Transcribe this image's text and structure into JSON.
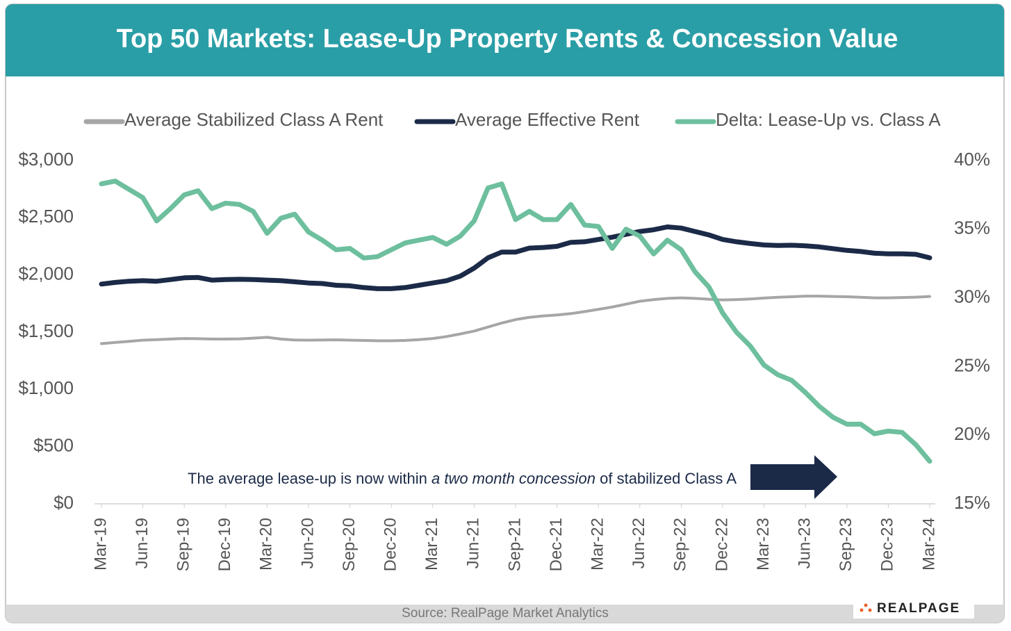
{
  "chart_data": {
    "type": "line",
    "title": "Top 50 Markets: Lease-Up Property Rents & Concession Value",
    "categories": [
      "Mar-19",
      null,
      null,
      "Jun-19",
      null,
      null,
      "Sep-19",
      null,
      null,
      "Dec-19",
      null,
      null,
      "Mar-20",
      null,
      null,
      "Jun-20",
      null,
      null,
      "Sep-20",
      null,
      null,
      "Dec-20",
      null,
      null,
      "Mar-21",
      null,
      null,
      "Jun-21",
      null,
      null,
      "Sep-21",
      null,
      null,
      "Dec-21",
      null,
      null,
      "Mar-22",
      null,
      null,
      "Jun-22",
      null,
      null,
      "Sep-22",
      null,
      null,
      "Dec-22",
      null,
      null,
      "Mar-23",
      null,
      null,
      "Jun-23",
      null,
      null,
      "Sep-23",
      null,
      null,
      "Dec-23",
      null,
      null,
      "Mar-24"
    ],
    "series": [
      {
        "name": "Average Stabilized Class A Rent",
        "color": "#a6a6a6",
        "values": [
          1400,
          1410,
          1420,
          1430,
          1435,
          1440,
          1445,
          1443,
          1440,
          1440,
          1442,
          1448,
          1455,
          1440,
          1432,
          1430,
          1432,
          1433,
          1430,
          1428,
          1425,
          1425,
          1428,
          1435,
          1445,
          1462,
          1485,
          1510,
          1545,
          1580,
          1610,
          1630,
          1642,
          1650,
          1662,
          1680,
          1700,
          1720,
          1745,
          1770,
          1785,
          1795,
          1800,
          1795,
          1788,
          1782,
          1785,
          1790,
          1798,
          1805,
          1810,
          1815,
          1815,
          1812,
          1810,
          1805,
          1800,
          1800,
          1803,
          1806,
          1812
        ]
      },
      {
        "name": "Average Effective Rent",
        "color": "#1b2a47",
        "values": [
          1920,
          1935,
          1945,
          1950,
          1945,
          1960,
          1975,
          1978,
          1955,
          1960,
          1962,
          1960,
          1955,
          1950,
          1940,
          1930,
          1925,
          1910,
          1905,
          1890,
          1880,
          1880,
          1890,
          1910,
          1930,
          1950,
          1990,
          2060,
          2150,
          2200,
          2200,
          2235,
          2240,
          2250,
          2285,
          2290,
          2310,
          2330,
          2355,
          2380,
          2395,
          2420,
          2410,
          2380,
          2350,
          2310,
          2290,
          2275,
          2262,
          2258,
          2260,
          2255,
          2245,
          2230,
          2215,
          2205,
          2190,
          2185,
          2185,
          2180,
          2150
        ]
      },
      {
        "name": "Delta: Lease-Up vs. Class A",
        "color": "#6dbf9e",
        "axis": "y2",
        "values": [
          38.3,
          38.5,
          37.9,
          37.3,
          35.6,
          36.5,
          37.5,
          37.8,
          36.5,
          36.9,
          36.8,
          36.3,
          34.7,
          35.8,
          36.1,
          34.8,
          34.2,
          33.5,
          33.6,
          32.9,
          33.0,
          33.5,
          34.0,
          34.2,
          34.4,
          33.9,
          34.5,
          35.6,
          38.0,
          38.3,
          35.7,
          36.3,
          35.7,
          35.7,
          36.8,
          35.3,
          35.2,
          33.6,
          35.0,
          34.5,
          33.2,
          34.2,
          33.5,
          31.9,
          30.8,
          28.9,
          27.5,
          26.5,
          25.1,
          24.4,
          24.0,
          23.1,
          22.1,
          21.3,
          20.8,
          20.8,
          20.1,
          20.3,
          20.2,
          19.3,
          18.1
        ]
      }
    ],
    "ylim": [
      0,
      3000
    ],
    "yticks": [
      {
        "value": 0,
        "label": "$0"
      },
      {
        "value": 500,
        "label": "$500"
      },
      {
        "value": 1000,
        "label": "$1,000"
      },
      {
        "value": 1500,
        "label": "$1,500"
      },
      {
        "value": 2000,
        "label": "$2,000"
      },
      {
        "value": 2500,
        "label": "$2,500"
      },
      {
        "value": 3000,
        "label": "$3,000"
      }
    ],
    "y2lim": [
      15,
      40
    ],
    "y2ticks": [
      {
        "value": 15,
        "label": "15%"
      },
      {
        "value": 20,
        "label": "20%"
      },
      {
        "value": 25,
        "label": "25%"
      },
      {
        "value": 30,
        "label": "30%"
      },
      {
        "value": 35,
        "label": "35%"
      },
      {
        "value": 40,
        "label": "40%"
      }
    ],
    "annotation": {
      "before": "The average lease-up is now within ",
      "emphasis": "a two month concession",
      "after": " of stabilized Class A"
    }
  },
  "source": "Source: RealPage Market Analytics",
  "logo": "REALPAGE"
}
